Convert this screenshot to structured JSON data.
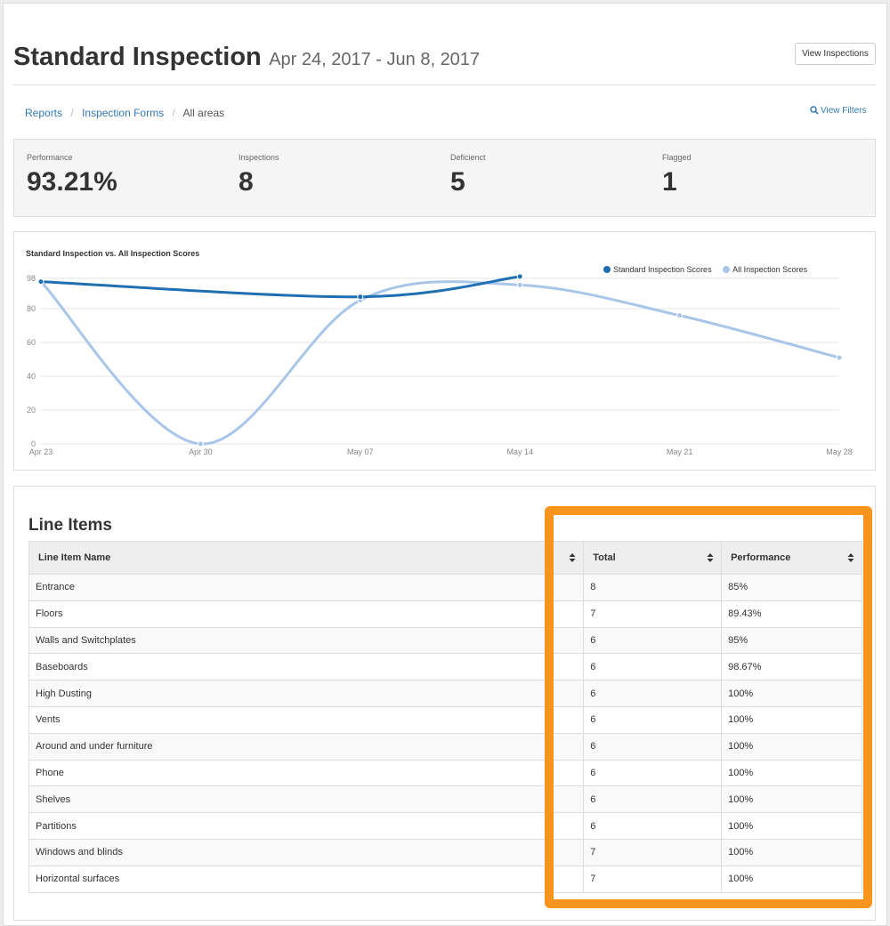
{
  "header": {
    "title": "Standard Inspection",
    "date_range": "Apr 24, 2017 - Jun 8, 2017",
    "view_button": "View Inspections"
  },
  "breadcrumb": {
    "items": [
      "Reports",
      "Inspection Forms",
      "All areas"
    ],
    "separator": "/",
    "filters_link": "View Filters"
  },
  "stats": [
    {
      "label": "Performance",
      "value": "93.21%"
    },
    {
      "label": "Inspections",
      "value": "8"
    },
    {
      "label": "Deficienct",
      "value": "5"
    },
    {
      "label": "Flagged",
      "value": "1"
    }
  ],
  "chart_data": {
    "type": "line",
    "title": "Standard Inspection vs. All Inspection Scores",
    "x_ticks": [
      "Apr 23",
      "Apr 30",
      "May 07",
      "May 14",
      "May 21",
      "May 28"
    ],
    "y_ticks": [
      0,
      20,
      40,
      60,
      80,
      98
    ],
    "ylim": [
      0,
      100
    ],
    "legend_position": "top-right",
    "grid": true,
    "series": [
      {
        "name": "Standard Inspection Scores",
        "color": "#1f6fb2",
        "points": [
          {
            "x": "Apr 23",
            "y": 96
          },
          {
            "x": "May 07",
            "y": 87
          },
          {
            "x": "May 14",
            "y": 99
          }
        ]
      },
      {
        "name": "All Inspection Scores",
        "color": "#a9c6e8",
        "points": [
          {
            "x": "Apr 23",
            "y": 96
          },
          {
            "x": "Apr 30",
            "y": 0
          },
          {
            "x": "May 07",
            "y": 85
          },
          {
            "x": "May 14",
            "y": 94
          },
          {
            "x": "May 21",
            "y": 76
          },
          {
            "x": "May 28",
            "y": 51
          }
        ]
      }
    ]
  },
  "line_items": {
    "title": "Line Items",
    "columns": [
      "Line Item Name",
      "Total",
      "Performance"
    ],
    "rows": [
      [
        "Entrance",
        "8",
        "85%"
      ],
      [
        "Floors",
        "7",
        "89.43%"
      ],
      [
        "Walls and Switchplates",
        "6",
        "95%"
      ],
      [
        "Baseboards",
        "6",
        "98.67%"
      ],
      [
        "High Dusting",
        "6",
        "100%"
      ],
      [
        "Vents",
        "6",
        "100%"
      ],
      [
        "Around and under furniture",
        "6",
        "100%"
      ],
      [
        "Phone",
        "6",
        "100%"
      ],
      [
        "Shelves",
        "6",
        "100%"
      ],
      [
        "Partitions",
        "6",
        "100%"
      ],
      [
        "Windows and blinds",
        "7",
        "100%"
      ],
      [
        "Horizontal surfaces",
        "7",
        "100%"
      ]
    ]
  },
  "colors": {
    "accent": "#337ab7",
    "highlight": "#f7941e"
  }
}
